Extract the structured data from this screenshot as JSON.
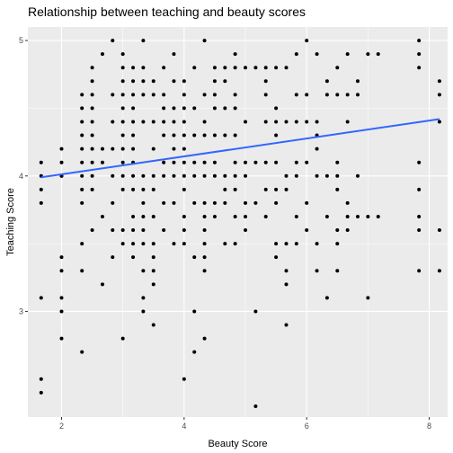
{
  "chart_data": {
    "type": "scatter",
    "title": "Relationship between teaching and beauty scores",
    "xlabel": "Beauty Score",
    "ylabel": "Teaching Score",
    "xlim": [
      1.45,
      8.3
    ],
    "ylim": [
      2.22,
      5.1
    ],
    "x_ticks": [
      2,
      4,
      6,
      8
    ],
    "y_ticks": [
      3,
      4,
      5
    ],
    "x_minor_ticks": [
      3,
      5,
      7
    ],
    "y_minor_ticks": [
      3.5,
      4.5
    ],
    "grid": true,
    "panel_background": "#ebebeb",
    "grid_color": "#ffffff",
    "point_color": "#000000",
    "trend_color": "#3366ff",
    "trend_line": {
      "x": [
        1.667,
        8.167
      ],
      "y": [
        3.99,
        4.42
      ]
    },
    "points": {
      "x": [
        1.667,
        1.667,
        1.667,
        1.667,
        1.667,
        1.667,
        1.667,
        2.0,
        2.0,
        2.0,
        2.0,
        2.0,
        2.0,
        2.0,
        2.0,
        2.0,
        2.333,
        2.333,
        2.333,
        2.333,
        2.333,
        2.333,
        2.333,
        2.333,
        2.333,
        2.333,
        2.333,
        2.333,
        2.5,
        2.5,
        2.5,
        2.5,
        2.5,
        2.5,
        2.5,
        2.5,
        2.5,
        2.5,
        2.5,
        2.667,
        2.667,
        2.667,
        2.667,
        2.667,
        2.833,
        2.833,
        2.833,
        2.833,
        2.833,
        2.833,
        2.833,
        2.833,
        3.0,
        3.0,
        3.0,
        3.0,
        3.0,
        3.0,
        3.0,
        3.0,
        3.0,
        3.0,
        3.0,
        3.0,
        3.0,
        3.0,
        3.167,
        3.167,
        3.167,
        3.167,
        3.167,
        3.167,
        3.167,
        3.167,
        3.167,
        3.167,
        3.167,
        3.167,
        3.167,
        3.167,
        3.333,
        3.333,
        3.333,
        3.333,
        3.333,
        3.333,
        3.333,
        3.333,
        3.333,
        3.333,
        3.333,
        3.333,
        3.333,
        3.333,
        3.5,
        3.5,
        3.5,
        3.5,
        3.5,
        3.5,
        3.5,
        3.5,
        3.5,
        3.5,
        3.5,
        3.5,
        3.667,
        3.667,
        3.667,
        3.667,
        3.667,
        3.667,
        3.667,
        3.667,
        3.667,
        3.833,
        3.833,
        3.833,
        3.833,
        3.833,
        3.833,
        3.833,
        3.833,
        3.833,
        3.833,
        4.0,
        4.0,
        4.0,
        4.0,
        4.0,
        4.0,
        4.0,
        4.0,
        4.0,
        4.0,
        4.0,
        4.0,
        4.0,
        4.167,
        4.167,
        4.167,
        4.167,
        4.167,
        4.167,
        4.167,
        4.167,
        4.167,
        4.333,
        4.333,
        4.333,
        4.333,
        4.333,
        4.333,
        4.333,
        4.333,
        4.333,
        4.333,
        4.333,
        4.333,
        4.333,
        4.5,
        4.5,
        4.5,
        4.5,
        4.5,
        4.5,
        4.5,
        4.5,
        4.5,
        4.667,
        4.667,
        4.667,
        4.667,
        4.667,
        4.667,
        4.667,
        4.667,
        4.833,
        4.833,
        4.833,
        4.833,
        4.833,
        4.833,
        4.833,
        4.833,
        4.833,
        4.833,
        5.0,
        5.0,
        5.0,
        5.0,
        5.0,
        5.0,
        5.0,
        5.167,
        5.167,
        5.167,
        5.167,
        5.167,
        5.333,
        5.333,
        5.333,
        5.333,
        5.333,
        5.333,
        5.333,
        5.5,
        5.5,
        5.5,
        5.5,
        5.5,
        5.5,
        5.5,
        5.5,
        5.5,
        5.667,
        5.667,
        5.667,
        5.667,
        5.667,
        5.667,
        5.667,
        5.667,
        5.833,
        5.833,
        5.833,
        5.833,
        5.833,
        5.833,
        5.833,
        6.0,
        6.0,
        6.0,
        6.0,
        6.0,
        6.0,
        6.167,
        6.167,
        6.167,
        6.167,
        6.167,
        6.167,
        6.167,
        6.333,
        6.333,
        6.333,
        6.333,
        6.333,
        6.5,
        6.5,
        6.5,
        6.5,
        6.5,
        6.5,
        6.5,
        6.5,
        6.667,
        6.667,
        6.667,
        6.667,
        6.667,
        6.667,
        6.833,
        6.833,
        6.833,
        6.833,
        7.0,
        7.0,
        7.0,
        7.167,
        7.167,
        7.833,
        7.833,
        7.833,
        7.833,
        7.833,
        7.833,
        7.833,
        7.833,
        8.167,
        8.167,
        8.167,
        8.167,
        8.167
      ],
      "y": [
        2.4,
        2.5,
        3.1,
        3.8,
        4.0,
        4.1,
        3.9,
        2.8,
        3.0,
        3.1,
        3.3,
        3.4,
        4.0,
        4.2,
        4.0,
        4.1,
        2.7,
        3.3,
        3.5,
        3.8,
        3.9,
        4.1,
        4.2,
        4.3,
        4.4,
        4.5,
        4.6,
        4.0,
        3.6,
        3.9,
        4.0,
        4.1,
        4.2,
        4.3,
        4.4,
        4.5,
        4.6,
        4.7,
        4.8,
        3.2,
        3.7,
        4.1,
        4.2,
        4.9,
        3.4,
        3.6,
        3.8,
        4.0,
        4.2,
        4.4,
        4.6,
        5.0,
        2.8,
        3.5,
        3.6,
        3.9,
        4.0,
        4.1,
        4.2,
        4.3,
        4.4,
        4.5,
        4.6,
        4.7,
        4.8,
        4.9,
        3.4,
        3.5,
        3.6,
        3.7,
        3.9,
        4.0,
        4.1,
        4.2,
        4.3,
        4.4,
        4.5,
        4.6,
        4.7,
        4.8,
        3.0,
        3.1,
        3.3,
        3.5,
        3.6,
        3.7,
        3.8,
        3.9,
        4.0,
        4.4,
        4.6,
        4.7,
        4.8,
        5.0,
        2.9,
        3.2,
        3.3,
        3.4,
        3.5,
        3.7,
        3.9,
        4.0,
        4.2,
        4.4,
        4.6,
        4.7,
        3.6,
        3.8,
        4.0,
        4.1,
        4.3,
        4.4,
        4.5,
        4.6,
        4.8,
        3.5,
        3.8,
        4.0,
        4.1,
        4.2,
        4.3,
        4.4,
        4.5,
        4.7,
        4.9,
        2.5,
        3.5,
        3.6,
        3.7,
        3.9,
        4.0,
        4.1,
        4.2,
        4.3,
        4.4,
        4.5,
        4.6,
        4.7,
        2.7,
        3.0,
        3.4,
        3.8,
        4.0,
        4.1,
        4.3,
        4.5,
        4.8,
        2.8,
        3.3,
        3.4,
        3.5,
        3.6,
        3.7,
        3.8,
        4.0,
        4.1,
        4.3,
        4.4,
        4.6,
        5.0,
        3.7,
        3.8,
        4.0,
        4.1,
        4.3,
        4.5,
        4.6,
        4.7,
        4.8,
        3.5,
        3.8,
        3.9,
        4.0,
        4.3,
        4.5,
        4.7,
        4.8,
        3.5,
        3.7,
        3.9,
        4.0,
        4.1,
        4.3,
        4.5,
        4.6,
        4.8,
        4.9,
        3.6,
        3.7,
        3.8,
        4.0,
        4.1,
        4.4,
        4.8,
        2.3,
        3.0,
        3.8,
        4.1,
        4.8,
        3.7,
        3.9,
        4.1,
        4.4,
        4.6,
        4.7,
        4.8,
        3.4,
        3.5,
        3.8,
        3.9,
        4.1,
        4.3,
        4.4,
        4.5,
        4.8,
        2.9,
        3.2,
        3.3,
        3.5,
        3.9,
        4.0,
        4.4,
        4.8,
        3.5,
        3.7,
        4.0,
        4.1,
        4.4,
        4.6,
        4.9,
        3.6,
        3.8,
        4.1,
        4.4,
        4.6,
        5.0,
        3.3,
        3.5,
        4.2,
        4.3,
        4.4,
        4.9,
        4.0,
        3.1,
        3.7,
        4.0,
        4.6,
        4.7,
        3.3,
        3.5,
        3.6,
        3.9,
        4.0,
        4.1,
        4.6,
        4.8,
        3.6,
        3.7,
        3.8,
        4.4,
        4.6,
        4.9,
        3.7,
        4.0,
        4.6,
        4.7,
        3.1,
        3.7,
        4.9,
        3.7,
        4.9,
        3.3,
        3.6,
        3.7,
        3.9,
        4.1,
        4.8,
        4.9,
        5.0,
        3.3,
        3.6,
        4.6,
        4.7,
        4.4
      ]
    }
  }
}
